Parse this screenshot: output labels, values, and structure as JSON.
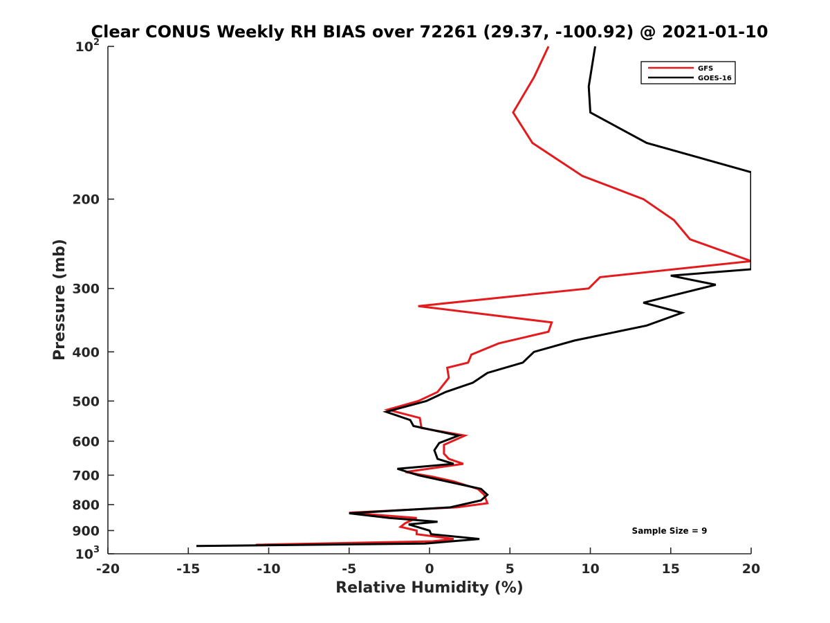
{
  "chart_data": {
    "type": "line",
    "title": "Clear CONUS Weekly RH BIAS over 72261 (29.37, -100.92) @ 2021-01-10",
    "xlabel": "Relative Humidity (%)",
    "ylabel": "Pressure (mb)",
    "xlim": [
      -20,
      20
    ],
    "ylim": [
      100,
      1000
    ],
    "y_scale": "log",
    "y_reversed": true,
    "x_ticks": [
      "-20",
      "-15",
      "-10",
      "-5",
      "0",
      "5",
      "10",
      "15",
      "20"
    ],
    "y_ticks": [
      {
        "value": 100,
        "base": "10",
        "exp": "2"
      },
      {
        "value": 200,
        "label": "200"
      },
      {
        "value": 300,
        "label": "300"
      },
      {
        "value": 400,
        "label": "400"
      },
      {
        "value": 500,
        "label": "500"
      },
      {
        "value": 600,
        "label": "600"
      },
      {
        "value": 700,
        "label": "700"
      },
      {
        "value": 800,
        "label": "800"
      },
      {
        "value": 900,
        "label": "900"
      },
      {
        "value": 1000,
        "base": "10",
        "exp": "3"
      }
    ],
    "legend_position": "top-right",
    "grid": false,
    "annotation": "Sample Size = 9",
    "series": [
      {
        "name": "GFS",
        "color": "#e41a1c",
        "points": [
          [
            7.4,
            100
          ],
          [
            6.5,
            115
          ],
          [
            5.2,
            135
          ],
          [
            6.4,
            155
          ],
          [
            9.5,
            180
          ],
          [
            13.3,
            200
          ],
          [
            15.2,
            220
          ],
          [
            16.2,
            240
          ],
          [
            20,
            265
          ],
          [
            10.6,
            285
          ],
          [
            9.9,
            300
          ],
          [
            -0.7,
            325
          ],
          [
            7.6,
            350
          ],
          [
            7.4,
            365
          ],
          [
            4.3,
            385
          ],
          [
            2.6,
            405
          ],
          [
            2.4,
            420
          ],
          [
            1.1,
            430
          ],
          [
            1.2,
            450
          ],
          [
            0.5,
            480
          ],
          [
            -0.7,
            500
          ],
          [
            -2.6,
            520
          ],
          [
            -0.6,
            540
          ],
          [
            -0.5,
            565
          ],
          [
            2.2,
            585
          ],
          [
            0.9,
            610
          ],
          [
            0.9,
            635
          ],
          [
            1.2,
            650
          ],
          [
            2.1,
            665
          ],
          [
            -1.5,
            690
          ],
          [
            0.2,
            705
          ],
          [
            1.5,
            720
          ],
          [
            3.0,
            745
          ],
          [
            3.4,
            765
          ],
          [
            3.6,
            795
          ],
          [
            1.7,
            810
          ],
          [
            -5.0,
            830
          ],
          [
            -0.8,
            850
          ],
          [
            -1.5,
            870
          ],
          [
            -1.8,
            885
          ],
          [
            -0.8,
            900
          ],
          [
            -0.8,
            915
          ],
          [
            1.5,
            935
          ],
          [
            0.2,
            945
          ],
          [
            -10.8,
            960
          ]
        ]
      },
      {
        "name": "GOES-16",
        "color": "#000000",
        "points": [
          [
            10.3,
            100
          ],
          [
            9.9,
            120
          ],
          [
            10.0,
            135
          ],
          [
            13.5,
            155
          ],
          [
            20,
            177
          ],
          [
            20,
            275
          ],
          [
            15.0,
            283
          ],
          [
            17.8,
            295
          ],
          [
            13.3,
            320
          ],
          [
            15.7,
            335
          ],
          [
            13.5,
            355
          ],
          [
            9.0,
            380
          ],
          [
            6.5,
            400
          ],
          [
            5.8,
            420
          ],
          [
            3.6,
            440
          ],
          [
            2.7,
            460
          ],
          [
            1.0,
            480
          ],
          [
            -0.2,
            500
          ],
          [
            -2.7,
            525
          ],
          [
            -1.2,
            545
          ],
          [
            -1.0,
            560
          ],
          [
            1.8,
            585
          ],
          [
            0.6,
            605
          ],
          [
            0.3,
            625
          ],
          [
            0.5,
            650
          ],
          [
            1.5,
            665
          ],
          [
            -2.0,
            680
          ],
          [
            -0.7,
            700
          ],
          [
            1.5,
            725
          ],
          [
            3.2,
            745
          ],
          [
            3.6,
            765
          ],
          [
            3.2,
            785
          ],
          [
            1.3,
            810
          ],
          [
            -5.0,
            832
          ],
          [
            -2.5,
            850
          ],
          [
            0.5,
            865
          ],
          [
            -1.3,
            875
          ],
          [
            0.0,
            900
          ],
          [
            0.1,
            915
          ],
          [
            3.1,
            935
          ],
          [
            -0.3,
            955
          ],
          [
            -14.5,
            965
          ]
        ]
      }
    ]
  }
}
